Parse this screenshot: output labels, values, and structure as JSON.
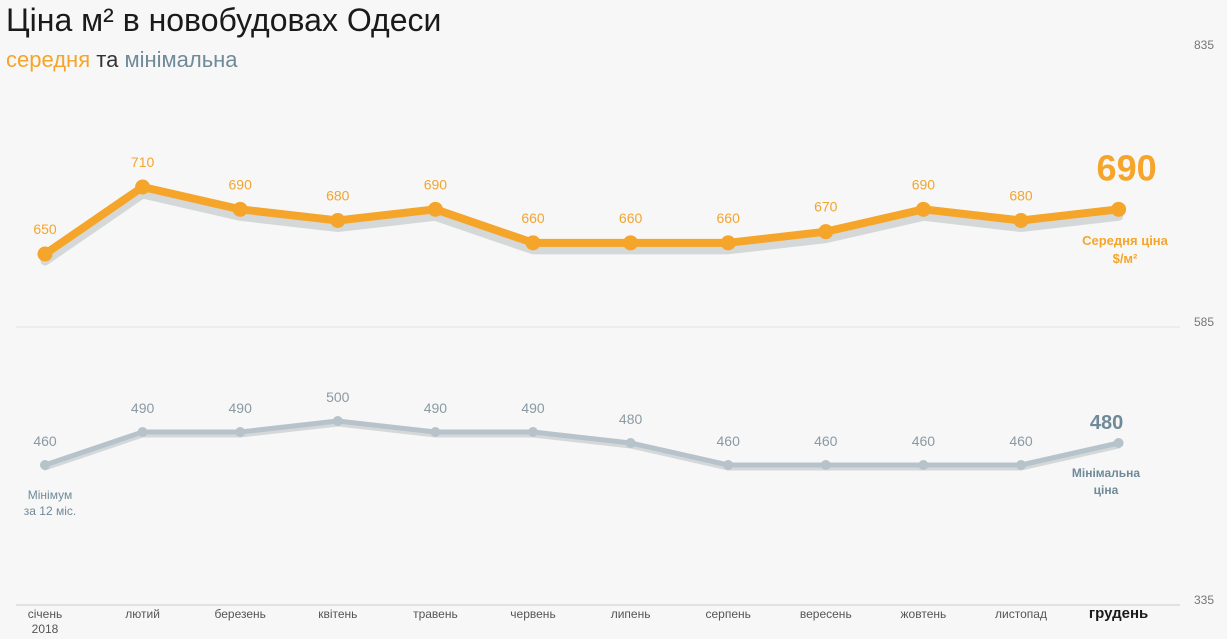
{
  "colors": {
    "avg": "#f5a52a",
    "min": "#b7c3ca",
    "min_text": "#6f8a98",
    "shadow": "#d5d8d9",
    "avg_label": "#f2a530",
    "axis_text": "#777777",
    "grid": "#e3e3e3",
    "background": "#f7f7f7"
  },
  "chart_data": {
    "type": "line",
    "title": "Ціна м² в новобудовах Одеси",
    "subtitle": {
      "avg_word": "середня",
      "conj": "та",
      "min_word": "мінімальна"
    },
    "categories": [
      "січень",
      "лютий",
      "березень",
      "квітень",
      "травень",
      "червень",
      "липень",
      "серпень",
      "вересень",
      "жовтень",
      "листопад",
      "грудень"
    ],
    "first_category_year": "2018",
    "highlighted_category": "грудень",
    "series": [
      {
        "key": "avg",
        "values": [
          650,
          710,
          690,
          680,
          690,
          660,
          660,
          660,
          670,
          690,
          680,
          690
        ],
        "end_label": [
          "Середня ціна",
          "$/м²"
        ]
      },
      {
        "key": "min",
        "values": [
          460,
          490,
          490,
          500,
          490,
          490,
          480,
          460,
          460,
          460,
          460,
          480
        ],
        "end_label": [
          "Мінімальна",
          "ціна"
        ],
        "start_note": [
          "Мінімум",
          "за 12 міс."
        ]
      }
    ],
    "right_axis_ticks": [
      835,
      585,
      335
    ],
    "ylim": [
      335,
      835
    ],
    "grid": "horizontal line at 585"
  }
}
